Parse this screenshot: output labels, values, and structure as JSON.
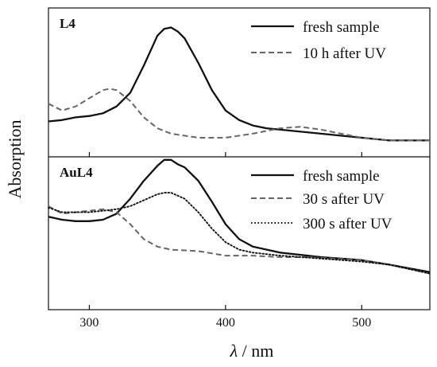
{
  "chart_data": {
    "type": "line",
    "xlabel_symbol": "λ",
    "xlabel_unit": " / nm",
    "ylabel": "Absorption",
    "xlim": [
      270,
      550
    ],
    "xticks": [
      300,
      400,
      500
    ],
    "panels": [
      {
        "label": "L4",
        "ylim": [
          0,
          1
        ],
        "series": [
          {
            "name": "fresh sample",
            "style": "solid",
            "x": [
              270,
              280,
              290,
              300,
              310,
              320,
              330,
              340,
              350,
              355,
              360,
              365,
              370,
              380,
              390,
              400,
              410,
              420,
              430,
              450,
              470,
              500,
              520,
              550
            ],
            "y": [
              0.19,
              0.2,
              0.22,
              0.23,
              0.25,
              0.3,
              0.4,
              0.6,
              0.82,
              0.87,
              0.88,
              0.85,
              0.8,
              0.62,
              0.42,
              0.27,
              0.2,
              0.16,
              0.14,
              0.12,
              0.1,
              0.07,
              0.05,
              0.05
            ]
          },
          {
            "name": "10 h after UV",
            "style": "dashed",
            "x": [
              270,
              280,
              290,
              300,
              310,
              315,
              320,
              330,
              340,
              350,
              360,
              380,
              400,
              420,
              440,
              455,
              470,
              500,
              520,
              550
            ],
            "y": [
              0.32,
              0.27,
              0.3,
              0.36,
              0.42,
              0.43,
              0.42,
              0.34,
              0.22,
              0.14,
              0.1,
              0.07,
              0.07,
              0.1,
              0.14,
              0.15,
              0.13,
              0.07,
              0.05,
              0.05
            ]
          }
        ]
      },
      {
        "label": "AuL4",
        "ylim": [
          0,
          1
        ],
        "series": [
          {
            "name": "fresh sample",
            "style": "solid",
            "x": [
              270,
              280,
              290,
              300,
              310,
              320,
              330,
              340,
              350,
              355,
              360,
              365,
              370,
              380,
              390,
              400,
              410,
              420,
              440,
              470,
              500,
              520,
              550
            ],
            "y": [
              0.6,
              0.58,
              0.57,
              0.57,
              0.58,
              0.62,
              0.72,
              0.84,
              0.94,
              0.98,
              0.98,
              0.95,
              0.93,
              0.84,
              0.7,
              0.55,
              0.45,
              0.4,
              0.36,
              0.33,
              0.31,
              0.28,
              0.23
            ]
          },
          {
            "name": "30 s after UV",
            "style": "dashed",
            "x": [
              270,
              280,
              290,
              300,
              310,
              320,
              330,
              340,
              350,
              360,
              380,
              400,
              420,
              440,
              460,
              500,
              520,
              550
            ],
            "y": [
              0.67,
              0.62,
              0.63,
              0.64,
              0.65,
              0.63,
              0.55,
              0.45,
              0.4,
              0.38,
              0.37,
              0.34,
              0.34,
              0.33,
              0.33,
              0.31,
              0.28,
              0.22
            ]
          },
          {
            "name": "300 s after UV",
            "style": "dotted",
            "x": [
              270,
              280,
              290,
              300,
              310,
              320,
              330,
              340,
              350,
              355,
              360,
              370,
              380,
              390,
              400,
              410,
              420,
              440,
              470,
              500,
              520,
              550
            ],
            "y": [
              0.66,
              0.63,
              0.63,
              0.63,
              0.64,
              0.65,
              0.67,
              0.71,
              0.75,
              0.76,
              0.76,
              0.72,
              0.63,
              0.52,
              0.43,
              0.38,
              0.36,
              0.34,
              0.32,
              0.3,
              0.28,
              0.22
            ]
          }
        ]
      }
    ]
  }
}
